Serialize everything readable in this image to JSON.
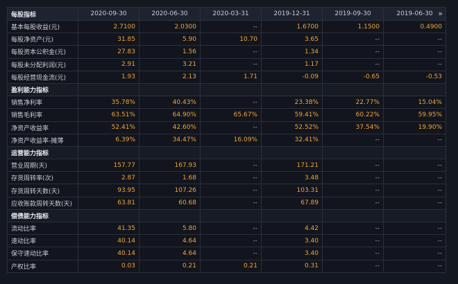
{
  "header": {
    "label": "每股指标",
    "dates": [
      "2020-09-30",
      "2020-06-30",
      "2020-03-31",
      "2019-12-31",
      "2019-09-30",
      "2019-06-30"
    ],
    "more_icon": "double-chevron-right-icon"
  },
  "rows": [
    {
      "type": "data",
      "label": "基本每股收益(元)",
      "values": [
        "2.7100",
        "2.0300",
        "--",
        "1.6700",
        "1.1500",
        "0.4900"
      ]
    },
    {
      "type": "data",
      "label": "每股净资产(元)",
      "values": [
        "31.85",
        "5.90",
        "10.70",
        "3.65",
        "--",
        "--"
      ]
    },
    {
      "type": "data",
      "label": "每股资本公积金(元)",
      "values": [
        "27.83",
        "1.56",
        "--",
        "1.34",
        "--",
        "--"
      ]
    },
    {
      "type": "data",
      "label": "每股未分配利润(元)",
      "values": [
        "2.91",
        "3.21",
        "--",
        "1.17",
        "--",
        "--"
      ]
    },
    {
      "type": "data",
      "label": "每股经营现金流(元)",
      "values": [
        "1.93",
        "2.13",
        "1.71",
        "-0.09",
        "-0.65",
        "-0.53"
      ]
    },
    {
      "type": "section",
      "label": "盈利能力指标"
    },
    {
      "type": "data",
      "label": "销售净利率",
      "values": [
        "35.78%",
        "40.43%",
        "--",
        "23.38%",
        "22.77%",
        "15.04%"
      ]
    },
    {
      "type": "data",
      "label": "销售毛利率",
      "values": [
        "63.51%",
        "64.90%",
        "65.67%",
        "59.41%",
        "60.22%",
        "59.95%"
      ]
    },
    {
      "type": "data",
      "label": "净资产收益率",
      "values": [
        "52.41%",
        "42.60%",
        "--",
        "52.52%",
        "37.54%",
        "19.90%"
      ]
    },
    {
      "type": "data",
      "label": "净资产收益率-摊薄",
      "values": [
        "6.39%",
        "34.47%",
        "16.09%",
        "32.41%",
        "--",
        "--"
      ]
    },
    {
      "type": "section",
      "label": "运营能力指标"
    },
    {
      "type": "data",
      "label": "营业周期(天)",
      "values": [
        "157.77",
        "167.93",
        "--",
        "171.21",
        "--",
        "--"
      ]
    },
    {
      "type": "data",
      "label": "存货周转率(次)",
      "values": [
        "2.87",
        "1.68",
        "--",
        "3.48",
        "--",
        "--"
      ]
    },
    {
      "type": "data",
      "label": "存货周转天数(天)",
      "values": [
        "93.95",
        "107.26",
        "--",
        "103.31",
        "--",
        "--"
      ]
    },
    {
      "type": "data",
      "label": "应收账款周转天数(天)",
      "values": [
        "63.81",
        "60.68",
        "--",
        "67.89",
        "--",
        "--"
      ]
    },
    {
      "type": "section",
      "label": "偿债能力指标"
    },
    {
      "type": "data",
      "label": "流动比率",
      "values": [
        "41.35",
        "5.80",
        "--",
        "4.42",
        "--",
        "--"
      ]
    },
    {
      "type": "data",
      "label": "速动比率",
      "values": [
        "40.14",
        "4.64",
        "--",
        "3.40",
        "--",
        "--"
      ]
    },
    {
      "type": "data",
      "label": "保守速动比率",
      "values": [
        "40.14",
        "4.64",
        "--",
        "3.40",
        "--",
        "--"
      ]
    },
    {
      "type": "data",
      "label": "产权比率",
      "values": [
        "0.03",
        "0.21",
        "0.21",
        "0.31",
        "--",
        "--"
      ]
    }
  ]
}
